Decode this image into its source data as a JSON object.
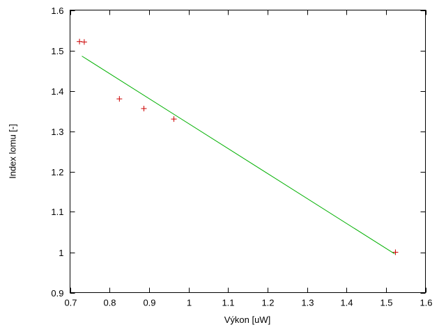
{
  "chart_data": {
    "type": "scatter",
    "title": "",
    "xlabel": "Výkon [uW]",
    "ylabel": "Index lomu [-]",
    "xlim": [
      0.7,
      1.6
    ],
    "ylim": [
      0.9,
      1.6
    ],
    "xtick_labels": [
      "0.7",
      "0.8",
      "0.9",
      "1",
      "1.1",
      "1.2",
      "1.3",
      "1.4",
      "1.5",
      "1.6"
    ],
    "ytick_labels": [
      "0.9",
      "1",
      "1.1",
      "1.2",
      "1.3",
      "1.4",
      "1.5",
      "1.6"
    ],
    "grid": false,
    "legend": "none",
    "border_color": "#000000",
    "series": [
      {
        "name": "measured-points",
        "type": "scatter",
        "marker": "plus",
        "color": "#cc0000",
        "points": [
          [
            0.724,
            1.522
          ],
          [
            0.736,
            1.521
          ],
          [
            0.825,
            1.38
          ],
          [
            0.887,
            1.356
          ],
          [
            0.963,
            1.33
          ],
          [
            1.524,
            1.0
          ]
        ]
      },
      {
        "name": "linear-fit",
        "type": "line",
        "color": "#00b000",
        "points": [
          [
            0.73,
            1.486
          ],
          [
            1.522,
            0.996
          ]
        ]
      }
    ]
  }
}
